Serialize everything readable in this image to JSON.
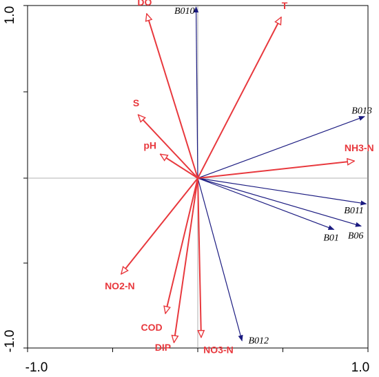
{
  "chart_data": {
    "type": "biplot",
    "xlim": [
      -1.0,
      1.0
    ],
    "ylim": [
      -1.0,
      1.0
    ],
    "x_ticks": [
      "-1.0",
      "1.0"
    ],
    "y_ticks": [
      "1.0",
      "-1.0"
    ],
    "grid": false,
    "env_color": "#e8383d",
    "species_color": "#1a1a80",
    "environmental_vectors": [
      {
        "label": "DO",
        "x": -0.3,
        "y": 0.96
      },
      {
        "label": "T",
        "x": 0.49,
        "y": 0.94
      },
      {
        "label": "S",
        "x": -0.35,
        "y": 0.37
      },
      {
        "label": "pH",
        "x": -0.22,
        "y": 0.14
      },
      {
        "label": "NH3-N",
        "x": 0.92,
        "y": 0.1
      },
      {
        "label": "NO2-N",
        "x": -0.45,
        "y": -0.56
      },
      {
        "label": "COD",
        "x": -0.19,
        "y": -0.79
      },
      {
        "label": "DIP",
        "x": -0.14,
        "y": -0.96
      },
      {
        "label": "NO3-N",
        "x": 0.02,
        "y": -0.93
      }
    ],
    "species_vectors": [
      {
        "label": "B010",
        "x": -0.01,
        "y": 1.0
      },
      {
        "label": "B013",
        "x": 0.98,
        "y": 0.36
      },
      {
        "label": "B011",
        "x": 0.99,
        "y": -0.15
      },
      {
        "label": "B06",
        "x": 0.96,
        "y": -0.28
      },
      {
        "label": "B01",
        "x": 0.8,
        "y": -0.3
      },
      {
        "label": "B012",
        "x": 0.26,
        "y": -0.95
      }
    ]
  }
}
